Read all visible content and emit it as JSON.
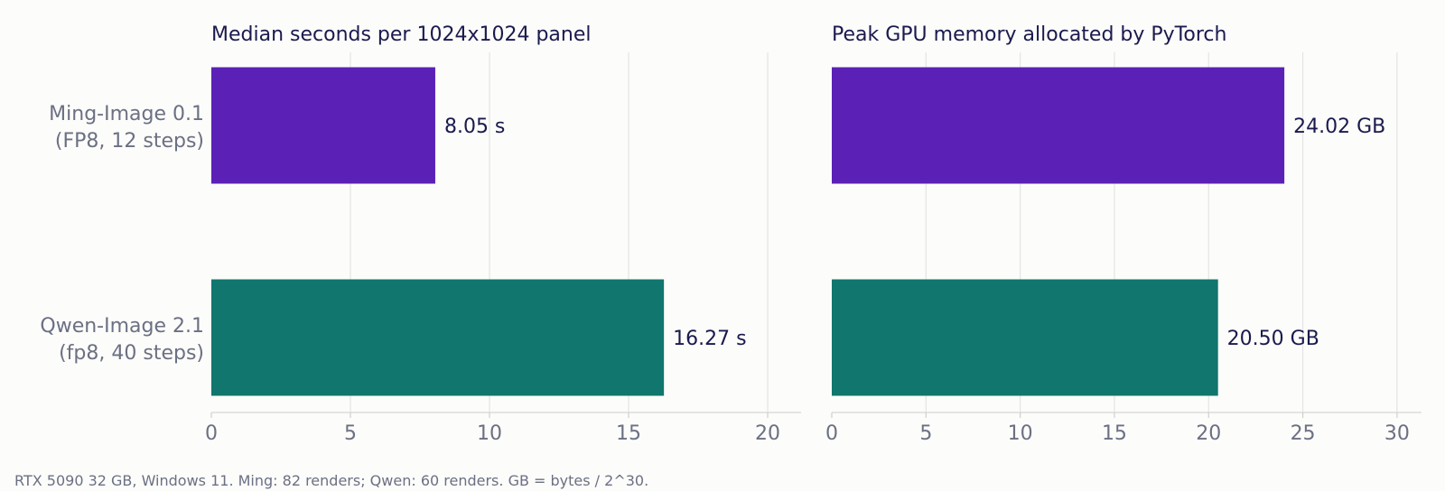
{
  "footnote": "RTX 5090 32 GB, Windows 11. Ming: 82 renders; Qwen: 60 renders. GB = bytes / 2^30.",
  "chart_data": [
    {
      "type": "bar",
      "orientation": "horizontal",
      "title": "Median seconds per 1024x1024 panel",
      "categories": [
        [
          "Ming-Image 0.1",
          "(FP8, 12 steps)"
        ],
        [
          "Qwen-Image 2.1",
          "(fp8, 40 steps)"
        ]
      ],
      "values": [
        8.05,
        16.27
      ],
      "value_labels": [
        "8.05 s",
        "16.27 s"
      ],
      "colors": [
        "#5b21b6",
        "#10766e"
      ],
      "xlim": [
        0,
        21.2
      ],
      "xticks": [
        0,
        5,
        10,
        15,
        20
      ],
      "grid": true,
      "show_categories": true
    },
    {
      "type": "bar",
      "orientation": "horizontal",
      "title": "Peak GPU memory allocated by PyTorch",
      "categories": [
        [
          "Ming-Image 0.1",
          "(FP8, 12 steps)"
        ],
        [
          "Qwen-Image 2.1",
          "(fp8, 40 steps)"
        ]
      ],
      "values": [
        24.02,
        20.5
      ],
      "value_labels": [
        "24.02 GB",
        "20.50 GB"
      ],
      "colors": [
        "#5b21b6",
        "#10766e"
      ],
      "xlim": [
        0,
        31.3
      ],
      "xticks": [
        0,
        5,
        10,
        15,
        20,
        25,
        30
      ],
      "grid": true,
      "show_categories": false
    }
  ]
}
